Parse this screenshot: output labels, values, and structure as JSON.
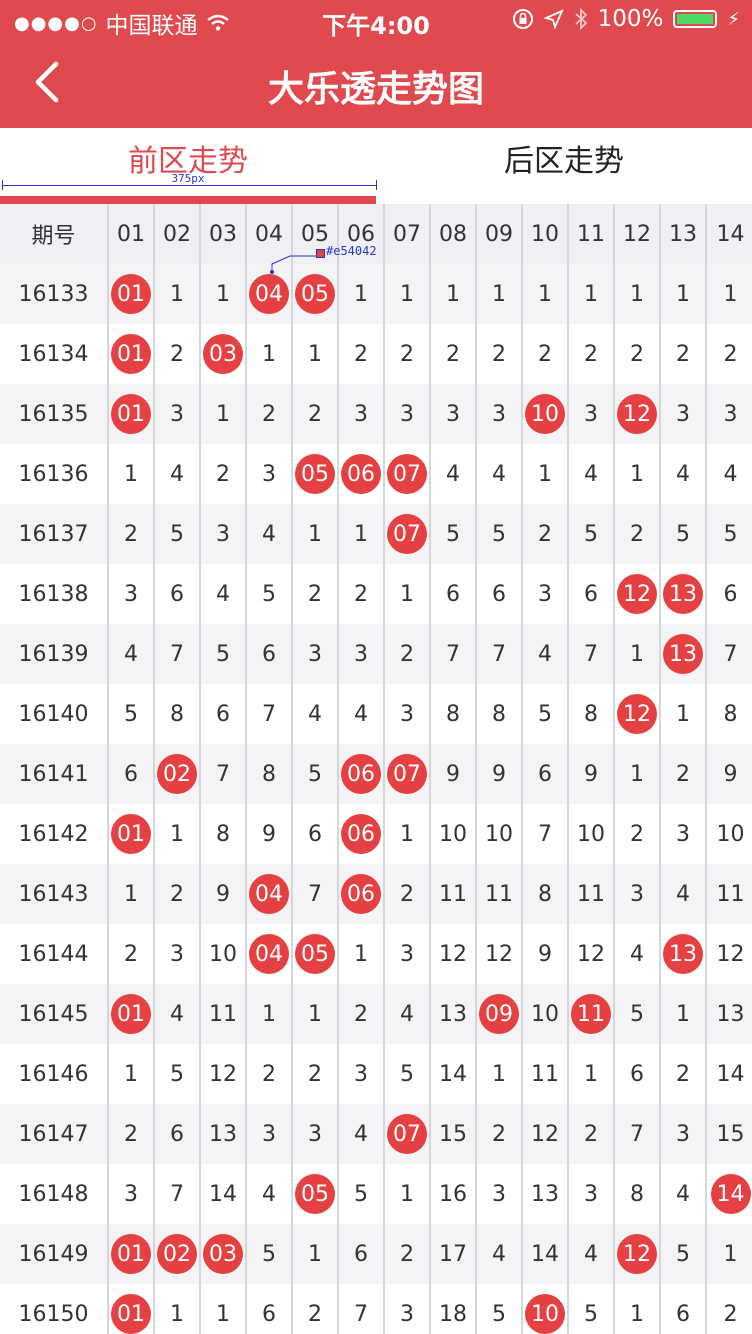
{
  "status_bar": {
    "carrier": "中国联通",
    "time": "下午4:00",
    "battery": "100%",
    "battery_level": 1.0
  },
  "nav": {
    "title": "大乐透走势图",
    "back_icon": "chevron-left-icon"
  },
  "tabs": [
    {
      "label": "前区走势",
      "active": true
    },
    {
      "label": "后区走势",
      "active": false
    }
  ],
  "annotations": {
    "width_label": "375px",
    "color_label": "#e54042"
  },
  "colors": {
    "header": "#e04a4e",
    "ball": "#e54042",
    "annotation": "#2b34c8"
  },
  "table": {
    "header_period": "期号",
    "columns": [
      "01",
      "02",
      "03",
      "04",
      "05",
      "06",
      "07",
      "08",
      "09",
      "10",
      "11",
      "12",
      "13",
      "14"
    ],
    "rows": [
      {
        "period": "16133",
        "values": [
          "01",
          "1",
          "1",
          "04",
          "05",
          "1",
          "1",
          "1",
          "1",
          "1",
          "1",
          "1",
          "1",
          "1"
        ],
        "hits": [
          0,
          3,
          4
        ]
      },
      {
        "period": "16134",
        "values": [
          "01",
          "2",
          "03",
          "1",
          "1",
          "2",
          "2",
          "2",
          "2",
          "2",
          "2",
          "2",
          "2",
          "2"
        ],
        "hits": [
          0,
          2
        ]
      },
      {
        "period": "16135",
        "values": [
          "01",
          "3",
          "1",
          "2",
          "2",
          "3",
          "3",
          "3",
          "3",
          "10",
          "3",
          "12",
          "3",
          "3"
        ],
        "hits": [
          0,
          9,
          11
        ]
      },
      {
        "period": "16136",
        "values": [
          "1",
          "4",
          "2",
          "3",
          "05",
          "06",
          "07",
          "4",
          "4",
          "1",
          "4",
          "1",
          "4",
          "4"
        ],
        "hits": [
          4,
          5,
          6
        ]
      },
      {
        "period": "16137",
        "values": [
          "2",
          "5",
          "3",
          "4",
          "1",
          "1",
          "07",
          "5",
          "5",
          "2",
          "5",
          "2",
          "5",
          "5"
        ],
        "hits": [
          6
        ]
      },
      {
        "period": "16138",
        "values": [
          "3",
          "6",
          "4",
          "5",
          "2",
          "2",
          "1",
          "6",
          "6",
          "3",
          "6",
          "12",
          "13",
          "6"
        ],
        "hits": [
          11,
          12
        ]
      },
      {
        "period": "16139",
        "values": [
          "4",
          "7",
          "5",
          "6",
          "3",
          "3",
          "2",
          "7",
          "7",
          "4",
          "7",
          "1",
          "13",
          "7"
        ],
        "hits": [
          12
        ]
      },
      {
        "period": "16140",
        "values": [
          "5",
          "8",
          "6",
          "7",
          "4",
          "4",
          "3",
          "8",
          "8",
          "5",
          "8",
          "12",
          "1",
          "8"
        ],
        "hits": [
          11
        ]
      },
      {
        "period": "16141",
        "values": [
          "6",
          "02",
          "7",
          "8",
          "5",
          "06",
          "07",
          "9",
          "9",
          "6",
          "9",
          "1",
          "2",
          "9"
        ],
        "hits": [
          1,
          5,
          6
        ]
      },
      {
        "period": "16142",
        "values": [
          "01",
          "1",
          "8",
          "9",
          "6",
          "06",
          "1",
          "10",
          "10",
          "7",
          "10",
          "2",
          "3",
          "10"
        ],
        "hits": [
          0,
          5
        ]
      },
      {
        "period": "16143",
        "values": [
          "1",
          "2",
          "9",
          "04",
          "7",
          "06",
          "2",
          "11",
          "11",
          "8",
          "11",
          "3",
          "4",
          "11"
        ],
        "hits": [
          3,
          5
        ]
      },
      {
        "period": "16144",
        "values": [
          "2",
          "3",
          "10",
          "04",
          "05",
          "1",
          "3",
          "12",
          "12",
          "9",
          "12",
          "4",
          "13",
          "12"
        ],
        "hits": [
          3,
          4,
          12
        ]
      },
      {
        "period": "16145",
        "values": [
          "01",
          "4",
          "11",
          "1",
          "1",
          "2",
          "4",
          "13",
          "09",
          "10",
          "11",
          "5",
          "1",
          "13"
        ],
        "hits": [
          0,
          8,
          10
        ]
      },
      {
        "period": "16146",
        "values": [
          "1",
          "5",
          "12",
          "2",
          "2",
          "3",
          "5",
          "14",
          "1",
          "11",
          "1",
          "6",
          "2",
          "14"
        ],
        "hits": []
      },
      {
        "period": "16147",
        "values": [
          "2",
          "6",
          "13",
          "3",
          "3",
          "4",
          "07",
          "15",
          "2",
          "12",
          "2",
          "7",
          "3",
          "15"
        ],
        "hits": [
          6
        ]
      },
      {
        "period": "16148",
        "values": [
          "3",
          "7",
          "14",
          "4",
          "05",
          "5",
          "1",
          "16",
          "3",
          "13",
          "3",
          "8",
          "4",
          "14"
        ],
        "hits": [
          4,
          13
        ]
      },
      {
        "period": "16149",
        "values": [
          "01",
          "02",
          "03",
          "5",
          "1",
          "6",
          "2",
          "17",
          "4",
          "14",
          "4",
          "12",
          "5",
          "1"
        ],
        "hits": [
          0,
          1,
          2,
          11
        ]
      },
      {
        "period": "16150",
        "values": [
          "01",
          "1",
          "1",
          "6",
          "2",
          "7",
          "3",
          "18",
          "5",
          "10",
          "5",
          "1",
          "6",
          "2"
        ],
        "hits": [
          0,
          9
        ]
      }
    ]
  }
}
